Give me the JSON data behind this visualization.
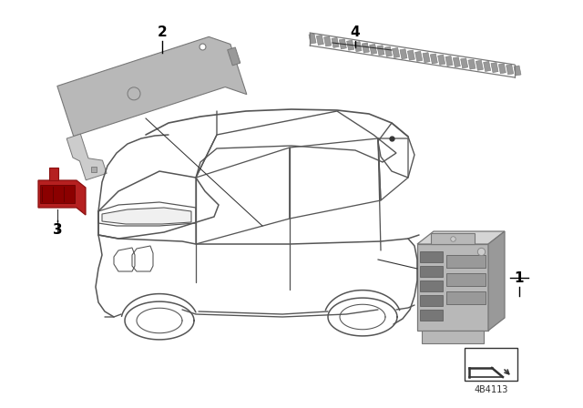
{
  "bg_color": "#ffffff",
  "car_line_color": "#555555",
  "part_gray_light": "#b8b8b8",
  "part_gray_mid": "#999999",
  "part_gray_dark": "#777777",
  "connector_red": "#b52020",
  "connector_red_dark": "#8b1010",
  "line_color": "#333333",
  "label_color": "#000000",
  "part_id": "4B4113",
  "fig_width": 6.4,
  "fig_height": 4.48,
  "dpi": 100,
  "car_lw": 1.1
}
